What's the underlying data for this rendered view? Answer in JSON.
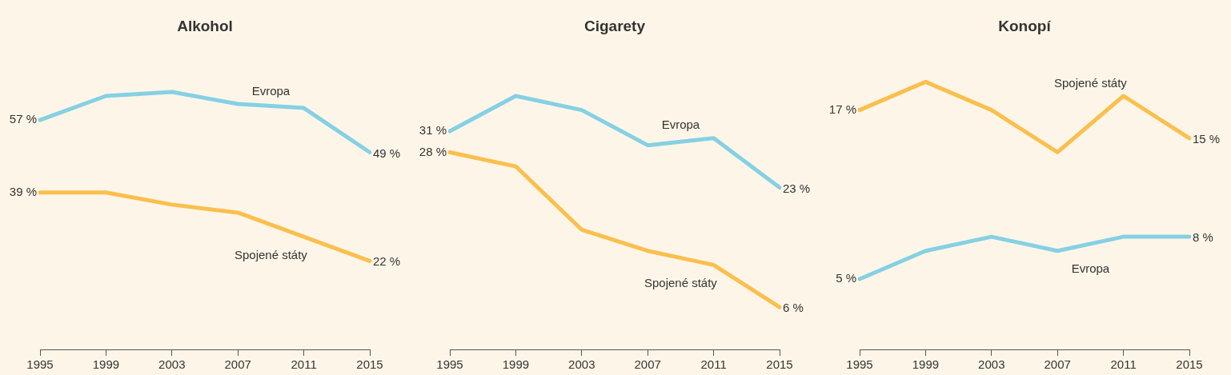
{
  "chart_data": [
    {
      "type": "line",
      "title": "Alkohol",
      "categories": [
        "1995",
        "1999",
        "2003",
        "2007",
        "2011",
        "2015"
      ],
      "tick_labels": "x",
      "grid": false,
      "legend": false,
      "marker": "none",
      "line_style": "solid",
      "series": [
        {
          "name": "Evropa",
          "color": "#86d0e3",
          "values": [
            57,
            63,
            64,
            61,
            60,
            49
          ],
          "value_labels": [
            "57 %",
            null,
            null,
            null,
            null,
            "49 %"
          ]
        },
        {
          "name": "Spojené státy",
          "color": "#fbbf4e",
          "values": [
            39,
            39,
            36,
            34,
            28,
            22
          ],
          "value_labels": [
            "39 %",
            null,
            null,
            null,
            null,
            "22 %"
          ]
        }
      ]
    },
    {
      "type": "line",
      "title": "Cigarety",
      "categories": [
        "1995",
        "1999",
        "2003",
        "2007",
        "2011",
        "2015"
      ],
      "tick_labels": "x",
      "grid": false,
      "legend": false,
      "marker": "none",
      "line_style": "solid",
      "series": [
        {
          "name": "Evropa",
          "color": "#86d0e3",
          "values": [
            31,
            36,
            34,
            29,
            30,
            23
          ],
          "value_labels": [
            "31 %",
            null,
            null,
            null,
            null,
            "23 %"
          ]
        },
        {
          "name": "Spojené státy",
          "color": "#fbbf4e",
          "values": [
            28,
            26,
            17,
            14,
            12,
            6
          ],
          "value_labels": [
            "28 %",
            null,
            null,
            null,
            null,
            "6 %"
          ]
        }
      ]
    },
    {
      "type": "line",
      "title": "Konopí",
      "categories": [
        "1995",
        "1999",
        "2003",
        "2007",
        "2011",
        "2015"
      ],
      "tick_labels": "x",
      "grid": false,
      "legend": false,
      "marker": "none",
      "line_style": "solid",
      "series": [
        {
          "name": "Spojené státy",
          "color": "#fbbf4e",
          "values": [
            17,
            19,
            17,
            14,
            18,
            15
          ],
          "value_labels": [
            "17 %",
            null,
            null,
            null,
            null,
            "15 %"
          ]
        },
        {
          "name": "Evropa",
          "color": "#86d0e3",
          "values": [
            5,
            7,
            8,
            7,
            8,
            8
          ],
          "value_labels": [
            "5 %",
            null,
            null,
            null,
            null,
            "8 %"
          ]
        }
      ]
    }
  ]
}
